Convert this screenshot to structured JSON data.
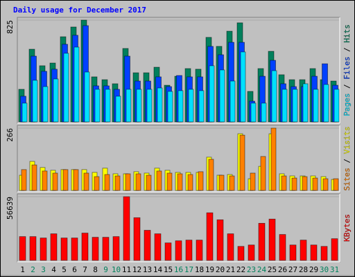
{
  "chart_data": {
    "type": "bar",
    "title": "Daily usage for December 2017",
    "categories": [
      "1",
      "2",
      "3",
      "4",
      "5",
      "6",
      "7",
      "8",
      "9",
      "10",
      "11",
      "12",
      "13",
      "14",
      "15",
      "16",
      "17",
      "18",
      "19",
      "20",
      "21",
      "22",
      "23",
      "24",
      "25",
      "26",
      "27",
      "28",
      "29",
      "30",
      "31"
    ],
    "category_colors": [
      "#000000",
      "#00805C",
      "#00805C",
      "#000000",
      "#000000",
      "#000000",
      "#000000",
      "#000000",
      "#00805C",
      "#00805C",
      "#000000",
      "#000000",
      "#000000",
      "#000000",
      "#000000",
      "#00805C",
      "#00805C",
      "#000000",
      "#000000",
      "#000000",
      "#000000",
      "#000000",
      "#00805C",
      "#00805C",
      "#000000",
      "#000000",
      "#000000",
      "#000000",
      "#000000",
      "#00805C",
      "#00805C"
    ],
    "legend_separator": " / ",
    "panels": [
      {
        "ylim": [
          0,
          825
        ],
        "yticks": [
          825
        ],
        "series": [
          {
            "name": "Pages",
            "color": "#00E0FF",
            "values": [
              152,
              337,
              286,
              348,
              556,
              606,
              404,
              264,
              264,
              208,
              264,
              264,
              264,
              275,
              247,
              253,
              264,
              253,
              455,
              421,
              331,
              567,
              152,
              152,
              415,
              264,
              264,
              309,
              264,
              303,
              264
            ]
          },
          {
            "name": "Files",
            "color": "#0040FF",
            "values": [
              208,
              533,
              410,
              427,
              629,
              702,
              780,
              292,
              292,
              264,
              533,
              331,
              331,
              365,
              286,
              376,
              365,
              365,
              612,
              544,
              645,
              645,
              168,
              370,
              499,
              309,
              286,
              286,
              370,
              471,
              297
            ]
          },
          {
            "name": "Hits",
            "color": "#00805C",
            "values": [
              264,
              589,
              455,
              477,
              690,
              769,
              825,
              365,
              342,
              309,
              595,
              398,
              398,
              443,
              297,
              370,
              432,
              427,
              685,
              612,
              735,
              803,
              247,
              432,
              572,
              382,
              342,
              342,
              432,
              342,
              331
            ]
          }
        ]
      },
      {
        "ylim": [
          0,
          266
        ],
        "yticks": [
          266
        ],
        "series": [
          {
            "name": "Sites",
            "color": "#FF8000",
            "values": [
              89,
              109,
              83,
              74,
              89,
              89,
              74,
              59,
              68,
              62,
              71,
              71,
              65,
              83,
              74,
              71,
              68,
              80,
              133,
              65,
              62,
              236,
              74,
              145,
              266,
              62,
              53,
              59,
              53,
              50,
              50
            ]
          },
          {
            "name": "Visits",
            "color": "#FFFF00",
            "values": [
              65,
              124,
              98,
              86,
              89,
              89,
              89,
              77,
              95,
              71,
              71,
              80,
              74,
              95,
              86,
              77,
              77,
              77,
              142,
              65,
              68,
              242,
              50,
              103,
              242,
              71,
              62,
              62,
              62,
              59,
              47
            ]
          }
        ]
      },
      {
        "ylim": [
          0,
          56639
        ],
        "yticks": [
          56639
        ],
        "series": [
          {
            "name": "KBytes",
            "color": "#FF0000",
            "values": [
              21162,
              21162,
              19917,
              23651,
              19917,
              19917,
              24274,
              20539,
              20539,
              21162,
              56639,
              37966,
              26763,
              23651,
              15560,
              17427,
              18050,
              18050,
              42323,
              36099,
              23651,
              12448,
              13693,
              32987,
              36722,
              23029,
              13693,
              18050,
              13693,
              12448,
              19294
            ]
          }
        ]
      }
    ]
  }
}
